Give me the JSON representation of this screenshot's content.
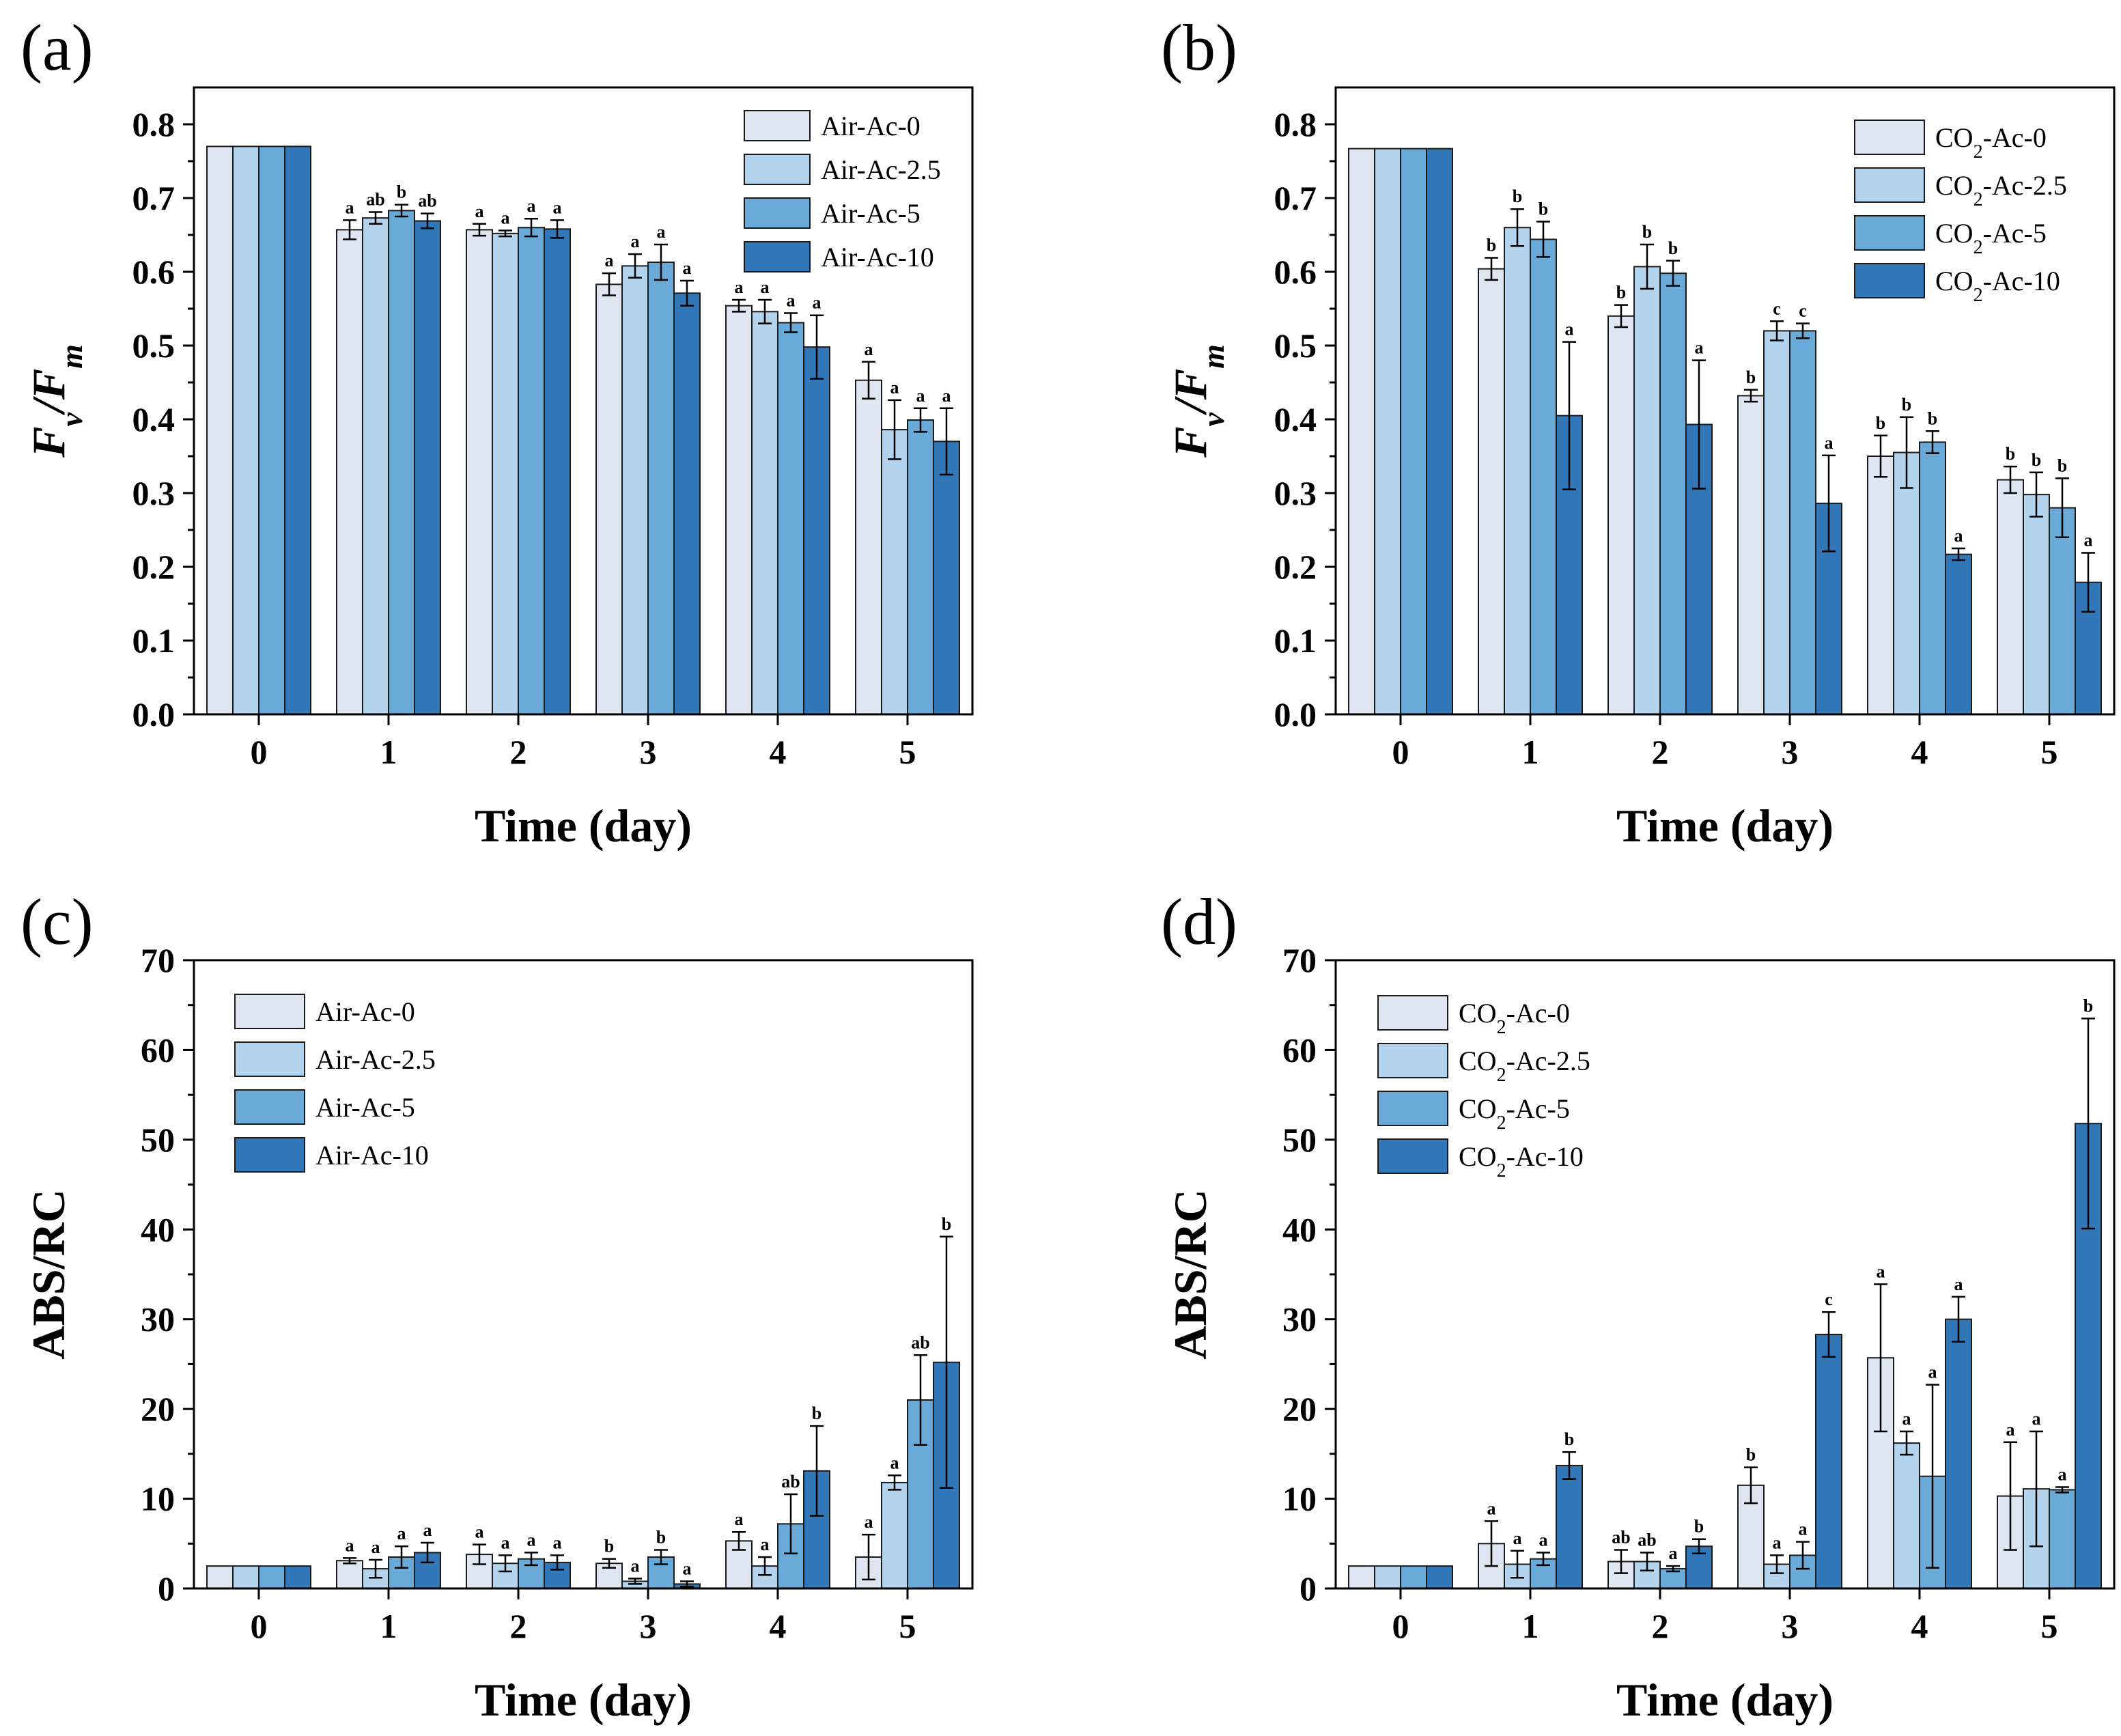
{
  "colors": {
    "series": [
      "#dde6f1",
      "#b4d4ee",
      "#6aaad8",
      "#3278b8"
    ],
    "edge": "#1a1a1a"
  },
  "chart_data": [
    {
      "type": "bar",
      "panel_label": "(a)",
      "categories": [
        "0",
        "1",
        "2",
        "3",
        "4",
        "5"
      ],
      "xlabel": "Time (day)",
      "ylabel": {
        "base": "F",
        "sub1": "v",
        "slash": "/",
        "base2": "F",
        "sub2": "m"
      },
      "ylim": [
        0,
        0.85
      ],
      "yticks": [
        "0.0",
        "0.1",
        "0.2",
        "0.3",
        "0.4",
        "0.5",
        "0.6",
        "0.7",
        "0.8"
      ],
      "legend_position": "top-right",
      "series": [
        {
          "name": "Air-Ac-0",
          "values": [
            0.77,
            0.657,
            0.657,
            0.583,
            0.554,
            0.453
          ],
          "errors": [
            0,
            0.013,
            0.008,
            0.015,
            0.008,
            0.025
          ],
          "sig": [
            "",
            "a",
            "a",
            "a",
            "a",
            "a"
          ]
        },
        {
          "name": "Air-Ac-2.5",
          "values": [
            0.77,
            0.673,
            0.652,
            0.608,
            0.546,
            0.386
          ],
          "errors": [
            0,
            0.008,
            0.004,
            0.016,
            0.016,
            0.04
          ],
          "sig": [
            "",
            "ab",
            "a",
            "a",
            "a",
            "a"
          ]
        },
        {
          "name": "Air-Ac-5",
          "values": [
            0.77,
            0.683,
            0.66,
            0.613,
            0.531,
            0.399
          ],
          "errors": [
            0,
            0.008,
            0.012,
            0.024,
            0.013,
            0.016
          ],
          "sig": [
            "",
            "b",
            "a",
            "a",
            "a",
            "a"
          ]
        },
        {
          "name": "Air-Ac-10",
          "values": [
            0.77,
            0.669,
            0.658,
            0.571,
            0.498,
            0.37
          ],
          "errors": [
            0,
            0.01,
            0.012,
            0.017,
            0.043,
            0.045
          ],
          "sig": [
            "",
            "ab",
            "a",
            "a",
            "a",
            "a"
          ]
        }
      ]
    },
    {
      "type": "bar",
      "panel_label": "(b)",
      "categories": [
        "0",
        "1",
        "2",
        "3",
        "4",
        "5"
      ],
      "xlabel": "Time (day)",
      "ylabel": {
        "base": "F",
        "sub1": "v",
        "slash": "/",
        "base2": "F",
        "sub2": "m"
      },
      "ylim": [
        0,
        0.85
      ],
      "yticks": [
        "0.0",
        "0.1",
        "0.2",
        "0.3",
        "0.4",
        "0.5",
        "0.6",
        "0.7",
        "0.8"
      ],
      "legend_position": "top-right",
      "series": [
        {
          "name": "CO2-Ac-0",
          "legend": {
            "pre": "CO",
            "sub": "2",
            "post": "-Ac-0"
          },
          "values": [
            0.767,
            0.604,
            0.54,
            0.432,
            0.35,
            0.318
          ],
          "errors": [
            0,
            0.015,
            0.015,
            0.008,
            0.028,
            0.018
          ],
          "sig": [
            "",
            "b",
            "b",
            "b",
            "b",
            "b"
          ]
        },
        {
          "name": "CO2-Ac-2.5",
          "legend": {
            "pre": "CO",
            "sub": "2",
            "post": "-Ac-2.5"
          },
          "values": [
            0.767,
            0.66,
            0.607,
            0.52,
            0.355,
            0.298
          ],
          "errors": [
            0,
            0.025,
            0.03,
            0.013,
            0.048,
            0.03
          ],
          "sig": [
            "",
            "b",
            "b",
            "c",
            "b",
            "b"
          ]
        },
        {
          "name": "CO2-Ac-5",
          "legend": {
            "pre": "CO",
            "sub": "2",
            "post": "-Ac-5"
          },
          "values": [
            0.767,
            0.644,
            0.598,
            0.52,
            0.369,
            0.28
          ],
          "errors": [
            0,
            0.024,
            0.017,
            0.01,
            0.015,
            0.04
          ],
          "sig": [
            "",
            "b",
            "b",
            "c",
            "b",
            "b"
          ]
        },
        {
          "name": "CO2-Ac-10",
          "legend": {
            "pre": "CO",
            "sub": "2",
            "post": "-Ac-10"
          },
          "values": [
            0.767,
            0.405,
            0.393,
            0.286,
            0.217,
            0.179
          ],
          "errors": [
            0,
            0.1,
            0.087,
            0.065,
            0.008,
            0.04
          ],
          "sig": [
            "",
            "a",
            "a",
            "a",
            "a",
            "a"
          ]
        }
      ]
    },
    {
      "type": "bar",
      "panel_label": "(c)",
      "categories": [
        "0",
        "1",
        "2",
        "3",
        "4",
        "5"
      ],
      "xlabel": "Time (day)",
      "ylabel": "ABS/RC",
      "ylim": [
        0,
        70
      ],
      "yticks": [
        "0",
        "10",
        "20",
        "30",
        "40",
        "50",
        "60",
        "70"
      ],
      "legend_position": "top-left",
      "series": [
        {
          "name": "Air-Ac-0",
          "values": [
            2.5,
            3.1,
            3.8,
            2.8,
            5.3,
            3.5
          ],
          "errors": [
            0,
            0.3,
            1.1,
            0.5,
            1.0,
            2.5
          ],
          "sig": [
            "",
            "a",
            "a",
            "b",
            "a",
            "a"
          ]
        },
        {
          "name": "Air-Ac-2.5",
          "values": [
            2.5,
            2.2,
            2.8,
            0.8,
            2.5,
            11.8
          ],
          "errors": [
            0,
            1.0,
            0.9,
            0.3,
            1.0,
            0.8
          ],
          "sig": [
            "",
            "a",
            "a",
            "a",
            "a",
            "a"
          ]
        },
        {
          "name": "Air-Ac-5",
          "values": [
            2.5,
            3.5,
            3.3,
            3.5,
            7.2,
            21.0
          ],
          "errors": [
            0,
            1.2,
            0.7,
            0.8,
            3.3,
            5.0
          ],
          "sig": [
            "",
            "a",
            "a",
            "b",
            "ab",
            "ab"
          ]
        },
        {
          "name": "Air-Ac-10",
          "values": [
            2.5,
            4.0,
            2.9,
            0.5,
            13.1,
            25.2
          ],
          "errors": [
            0,
            1.1,
            0.8,
            0.3,
            5.0,
            14.0
          ],
          "sig": [
            "",
            "a",
            "a",
            "a",
            "b",
            "b"
          ]
        }
      ]
    },
    {
      "type": "bar",
      "panel_label": "(d)",
      "categories": [
        "0",
        "1",
        "2",
        "3",
        "4",
        "5"
      ],
      "xlabel": "Time (day)",
      "ylabel": "ABS/RC",
      "ylim": [
        0,
        70
      ],
      "yticks": [
        "0",
        "10",
        "20",
        "30",
        "40",
        "50",
        "60",
        "70"
      ],
      "legend_position": "top-left",
      "series": [
        {
          "name": "CO2-Ac-0",
          "legend": {
            "pre": "CO",
            "sub": "2",
            "post": "-Ac-0"
          },
          "values": [
            2.5,
            5.0,
            3.0,
            11.5,
            25.7,
            10.3
          ],
          "errors": [
            0,
            2.5,
            1.3,
            2.0,
            8.2,
            6.0
          ],
          "sig": [
            "",
            "a",
            "ab",
            "b",
            "a",
            "a"
          ]
        },
        {
          "name": "CO2-Ac-2.5",
          "legend": {
            "pre": "CO",
            "sub": "2",
            "post": "-Ac-2.5"
          },
          "values": [
            2.5,
            2.7,
            3.0,
            2.7,
            16.2,
            11.1
          ],
          "errors": [
            0,
            1.5,
            1.0,
            1.0,
            1.3,
            6.4
          ],
          "sig": [
            "",
            "a",
            "ab",
            "a",
            "a",
            "a"
          ]
        },
        {
          "name": "CO2-Ac-5",
          "legend": {
            "pre": "CO",
            "sub": "2",
            "post": "-Ac-5"
          },
          "values": [
            2.5,
            3.3,
            2.2,
            3.7,
            12.5,
            11.0
          ],
          "errors": [
            0,
            0.7,
            0.3,
            1.5,
            10.2,
            0.3
          ],
          "sig": [
            "",
            "a",
            "a",
            "a",
            "a",
            "a"
          ]
        },
        {
          "name": "CO2-Ac-10",
          "legend": {
            "pre": "CO",
            "sub": "2",
            "post": "-Ac-10"
          },
          "values": [
            2.5,
            13.7,
            4.7,
            28.3,
            30.0,
            51.8
          ],
          "errors": [
            0,
            1.5,
            0.8,
            2.5,
            2.5,
            11.7
          ],
          "sig": [
            "",
            "b",
            "b",
            "c",
            "a",
            "b"
          ]
        }
      ]
    }
  ]
}
